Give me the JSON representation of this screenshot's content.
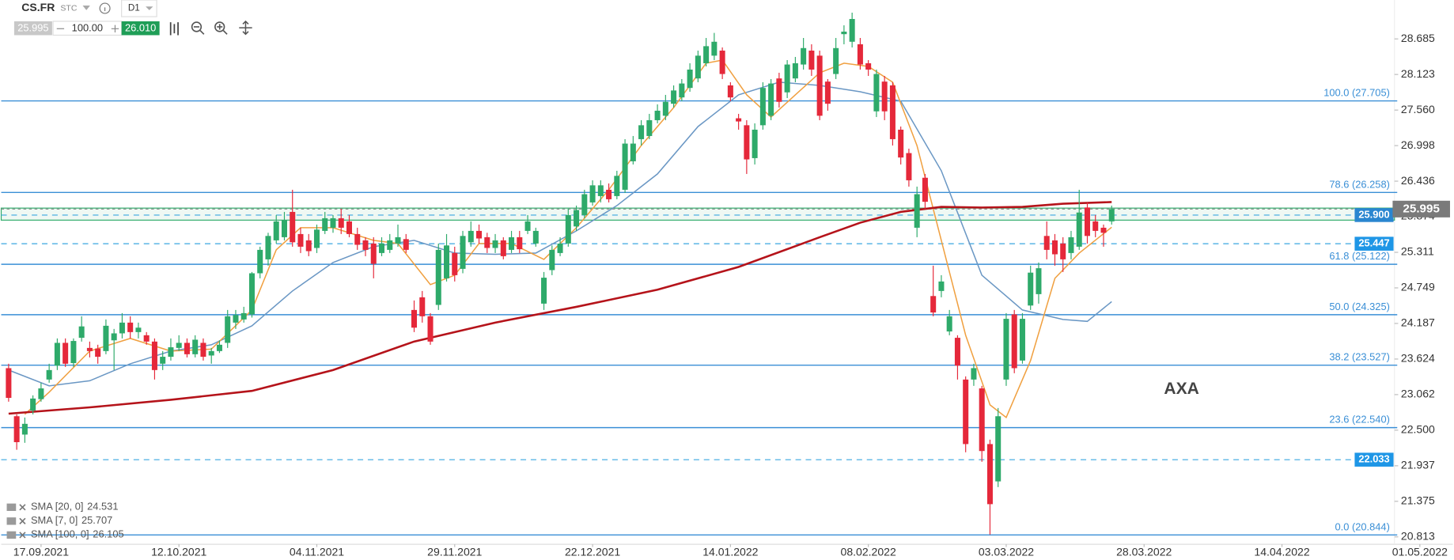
{
  "toolbar": {
    "symbol": "CS.FR",
    "market": "STC",
    "interval": "D1",
    "bid": "25.995",
    "volume": "100.00",
    "ask": "26.010"
  },
  "chart_data": {
    "type": "candlestick",
    "annotation": "AXA",
    "xlim": [
      -0.913,
      170.3
    ],
    "ylim": [
      20.696,
      29.3
    ],
    "xticks": [
      {
        "value": 4,
        "label": "17.09.2021"
      },
      {
        "value": 21,
        "label": "12.10.2021"
      },
      {
        "value": 38,
        "label": "04.11.2021"
      },
      {
        "value": 55,
        "label": "29.11.2021"
      },
      {
        "value": 72,
        "label": "22.12.2021"
      },
      {
        "value": 89,
        "label": "14.01.2022"
      },
      {
        "value": 106,
        "label": "08.02.2022"
      },
      {
        "value": 123,
        "label": "03.03.2022"
      },
      {
        "value": 140,
        "label": "28.03.2022"
      },
      {
        "value": 157,
        "label": "14.04.2022"
      },
      {
        "value": 174,
        "label": "01.05.2022"
      }
    ],
    "yticks": [
      28.685,
      28.123,
      {
        "value": 27.56,
        "label": "27.560"
      },
      26.998,
      26.436,
      25.874,
      25.311,
      24.749,
      24.187,
      23.624,
      23.062,
      {
        "value": 22.5,
        "label": "22.500"
      },
      21.937,
      21.375,
      20.813
    ],
    "up_color": "#2eaa6a",
    "down_color": "#e5283a",
    "open": [
      23.48,
      22.72,
      22.43,
      22.81,
      22.99,
      23.3,
      23.52,
      23.88,
      23.56,
      23.96,
      23.8,
      23.79,
      23.75,
      23.92,
      24.03,
      24.2,
      24.05,
      24.0,
      23.9,
      23.55,
      23.66,
      23.8,
      23.88,
      23.7,
      23.88,
      23.68,
      23.75,
      23.88,
      24.2,
      24.25,
      24.33,
      24.98,
      25.2,
      25.5,
      25.55,
      25.95,
      25.6,
      25.5,
      25.38,
      25.65,
      25.7,
      25.85,
      25.8,
      25.6,
      25.5,
      25.45,
      25.3,
      25.35,
      25.45,
      25.52,
      24.4,
      24.6,
      24.3,
      24.48,
      24.9,
      25.3,
      25.05,
      25.47,
      25.65,
      25.55,
      25.38,
      25.5,
      25.35,
      25.55,
      25.65,
      25.45,
      24.5,
      25.03,
      25.3,
      25.45,
      25.72,
      25.9,
      26.1,
      26.2,
      26.3,
      26.2,
      26.3,
      26.75,
      27.1,
      27.15,
      27.4,
      27.47,
      27.66,
      27.76,
      27.91,
      28.06,
      28.3,
      28.42,
      28.5,
      27.95,
      27.43,
      27.32,
      26.8,
      27.32,
      27.47,
      28.06,
      27.84,
      28.06,
      28.28,
      28.5,
      28.42,
      28.01,
      28.13,
      28.76,
      28.64,
      28.6,
      28.3,
      27.54,
      28.01,
      27.95,
      27.25,
      26.88,
      25.7,
      26.49,
      24.62,
      24.7,
      24.06,
      23.96,
      23.3,
      23.3,
      23.16,
      22.28,
      21.69,
      23.3,
      24.33,
      23.6,
      24.47,
      24.65,
      25.57,
      25.5,
      25.45,
      25.3,
      25.4,
      26.02,
      25.8,
      25.7,
      25.8
    ],
    "high": [
      23.55,
      22.75,
      22.7,
      23.05,
      23.25,
      23.55,
      23.95,
      23.95,
      23.95,
      24.3,
      23.9,
      23.85,
      24.25,
      24.1,
      24.35,
      24.3,
      24.2,
      24.05,
      23.95,
      23.75,
      23.95,
      24.0,
      23.95,
      24.0,
      23.95,
      23.8,
      23.92,
      24.4,
      24.4,
      24.45,
      25.0,
      25.4,
      25.62,
      25.9,
      25.95,
      26.3,
      25.7,
      25.6,
      25.75,
      25.95,
      25.9,
      26.0,
      25.9,
      25.7,
      25.55,
      25.55,
      25.55,
      25.6,
      25.75,
      25.6,
      24.55,
      24.7,
      24.35,
      25.45,
      25.6,
      25.4,
      25.65,
      25.8,
      25.75,
      25.62,
      25.6,
      25.55,
      25.65,
      25.65,
      25.9,
      25.7,
      25.0,
      25.42,
      25.55,
      26.0,
      26.05,
      26.3,
      26.45,
      26.45,
      26.4,
      26.6,
      27.1,
      27.15,
      27.4,
      27.5,
      27.65,
      27.8,
      27.95,
      28.05,
      28.3,
      28.5,
      28.7,
      28.78,
      28.55,
      28.0,
      27.5,
      27.4,
      27.35,
      28.0,
      28.05,
      28.15,
      28.35,
      28.4,
      28.7,
      28.6,
      28.5,
      28.05,
      28.7,
      28.9,
      29.1,
      28.7,
      28.35,
      28.2,
      28.1,
      28.0,
      27.3,
      26.95,
      26.35,
      26.55,
      25.1,
      24.95,
      24.4,
      24.0,
      23.35,
      23.55,
      23.2,
      22.35,
      22.85,
      24.35,
      24.4,
      24.35,
      25.1,
      25.15,
      25.8,
      25.6,
      25.55,
      25.65,
      26.3,
      26.1,
      25.9,
      25.75,
      26.05
    ],
    "low": [
      22.95,
      22.19,
      22.3,
      22.75,
      22.95,
      23.25,
      23.45,
      23.5,
      23.5,
      23.9,
      23.65,
      23.55,
      23.7,
      23.45,
      23.95,
      23.95,
      23.95,
      23.85,
      23.3,
      23.45,
      23.6,
      23.75,
      23.65,
      23.65,
      23.6,
      23.55,
      23.72,
      23.8,
      24.1,
      24.2,
      24.28,
      24.9,
      25.1,
      25.45,
      25.5,
      25.4,
      25.3,
      25.25,
      25.3,
      25.6,
      25.62,
      25.6,
      25.55,
      25.35,
      25.25,
      24.9,
      25.25,
      25.3,
      25.4,
      25.3,
      24.05,
      24.2,
      23.85,
      24.4,
      24.85,
      24.85,
      24.98,
      25.4,
      25.45,
      25.3,
      25.3,
      25.2,
      25.3,
      25.3,
      25.6,
      25.4,
      24.4,
      24.95,
      25.25,
      25.4,
      25.65,
      25.85,
      26.05,
      26.1,
      26.1,
      26.15,
      26.25,
      26.7,
      27.0,
      27.1,
      27.35,
      27.4,
      27.6,
      27.7,
      27.85,
      28.0,
      28.25,
      28.35,
      28.05,
      27.7,
      27.25,
      26.55,
      26.7,
      27.25,
      27.4,
      27.6,
      27.75,
      28.0,
      28.2,
      28.1,
      27.4,
      27.55,
      28.05,
      28.6,
      28.55,
      28.2,
      28.1,
      27.45,
      27.4,
      27.0,
      26.7,
      26.35,
      25.55,
      26.0,
      24.3,
      24.6,
      24.0,
      23.3,
      22.15,
      23.2,
      22.0,
      20.85,
      21.6,
      23.2,
      23.4,
      23.55,
      24.4,
      24.5,
      25.2,
      25.1,
      25.0,
      25.2,
      25.35,
      25.45,
      25.55,
      25.4,
      25.75
    ],
    "close": [
      23.01,
      22.31,
      22.6,
      23.0,
      23.16,
      23.45,
      23.88,
      23.55,
      23.91,
      24.14,
      23.75,
      23.66,
      24.15,
      24.03,
      24.2,
      24.05,
      24.12,
      23.9,
      23.45,
      23.66,
      23.81,
      23.88,
      23.7,
      23.93,
      23.66,
      23.75,
      23.85,
      24.3,
      24.32,
      24.35,
      24.98,
      25.35,
      25.57,
      25.8,
      25.82,
      25.47,
      25.4,
      25.33,
      25.67,
      25.85,
      25.85,
      25.7,
      25.6,
      25.43,
      25.35,
      25.13,
      25.45,
      25.5,
      25.55,
      25.35,
      24.12,
      24.3,
      23.9,
      25.35,
      25.42,
      24.95,
      25.57,
      25.65,
      25.53,
      25.38,
      25.5,
      25.25,
      25.55,
      25.36,
      25.8,
      25.65,
      24.91,
      25.35,
      25.45,
      25.9,
      25.98,
      26.23,
      26.37,
      26.37,
      26.15,
      26.52,
      27.03,
      27.03,
      27.32,
      27.4,
      27.55,
      27.69,
      27.87,
      27.98,
      28.2,
      28.42,
      28.57,
      28.64,
      28.13,
      27.76,
      27.38,
      26.78,
      27.25,
      27.91,
      27.98,
      27.69,
      28.28,
      28.3,
      28.54,
      28.2,
      27.47,
      27.66,
      28.54,
      28.8,
      29.0,
      28.28,
      28.2,
      28.13,
      27.54,
      27.1,
      26.81,
      26.45,
      26.23,
      26.11,
      24.36,
      24.85,
      24.3,
      23.52,
      22.28,
      23.48,
      22.17,
      21.33,
      22.72,
      24.26,
      23.48,
      24.26,
      24.99,
      25.06,
      25.35,
      25.28,
      25.2,
      25.55,
      25.94,
      25.57,
      25.65,
      25.62,
      25.995
    ],
    "series": [
      {
        "name": "SMA [20, 0]",
        "color": "#6a97c4",
        "x": [
          0,
          5,
          10,
          15,
          20,
          25,
          30,
          35,
          40,
          45,
          50,
          55,
          60,
          65,
          70,
          75,
          80,
          85,
          90,
          95,
          100,
          105,
          110,
          115,
          120,
          125,
          130,
          133,
          136
        ],
        "values": [
          23.45,
          23.2,
          23.28,
          23.55,
          23.75,
          23.85,
          24.15,
          24.7,
          25.15,
          25.4,
          25.5,
          25.3,
          25.28,
          25.3,
          25.65,
          26.05,
          26.55,
          27.3,
          27.8,
          28.0,
          27.95,
          27.85,
          27.7,
          26.6,
          24.95,
          24.4,
          24.25,
          24.22,
          24.531
        ]
      },
      {
        "name": "SMA [7, 0]",
        "color": "#f0a040",
        "x": [
          2,
          5,
          10,
          15,
          20,
          25,
          30,
          33,
          36,
          40,
          45,
          48,
          52,
          55,
          58,
          62,
          66,
          70,
          74,
          78,
          82,
          86,
          88,
          91,
          94,
          97,
          100,
          103,
          106,
          109,
          112,
          115,
          118,
          121,
          123,
          126,
          129,
          132,
          136
        ],
        "values": [
          22.75,
          23.1,
          23.75,
          23.95,
          23.75,
          23.78,
          24.4,
          25.35,
          25.7,
          25.7,
          25.5,
          25.45,
          24.8,
          24.95,
          25.45,
          25.45,
          25.2,
          25.7,
          26.3,
          27.0,
          27.6,
          28.3,
          28.35,
          27.8,
          27.45,
          27.8,
          28.15,
          28.3,
          28.25,
          28.0,
          27.0,
          25.5,
          24.0,
          22.9,
          22.7,
          23.6,
          24.9,
          25.3,
          25.707
        ]
      },
      {
        "name": "SMA [100, 0]",
        "color": "#b5131a",
        "x": [
          0,
          10,
          20,
          30,
          40,
          50,
          60,
          70,
          80,
          90,
          100,
          105,
          110,
          115,
          120,
          125,
          130,
          136
        ],
        "values": [
          22.76,
          22.86,
          22.98,
          23.12,
          23.45,
          23.9,
          24.2,
          24.45,
          24.72,
          25.08,
          25.55,
          25.78,
          25.95,
          26.03,
          26.02,
          26.03,
          26.08,
          26.105
        ]
      }
    ],
    "levels": [
      {
        "value": 27.705,
        "label": "100.0 (27.705)"
      },
      {
        "value": 26.258,
        "label": "78.6 (26.258)"
      },
      {
        "value": 25.122,
        "label": "61.8 (25.122)"
      },
      {
        "value": 24.325,
        "label": "50.0 (24.325)"
      },
      {
        "value": 23.527,
        "label": "38.2 (23.527)"
      },
      {
        "value": 22.54,
        "label": "23.6 (22.540)"
      },
      {
        "value": 20.844,
        "label": "0.0 (20.844)"
      }
    ],
    "level_color": "#3a8fd6",
    "zone": [
      25.82,
      26.01
    ],
    "price_lines": [
      {
        "value": 25.9,
        "label": "25.900"
      },
      {
        "value": 25.447,
        "label": "25.447"
      },
      {
        "value": 22.033,
        "label": "22.033"
      }
    ],
    "last_price": {
      "value": 25.995,
      "label": "25.995"
    }
  }
}
